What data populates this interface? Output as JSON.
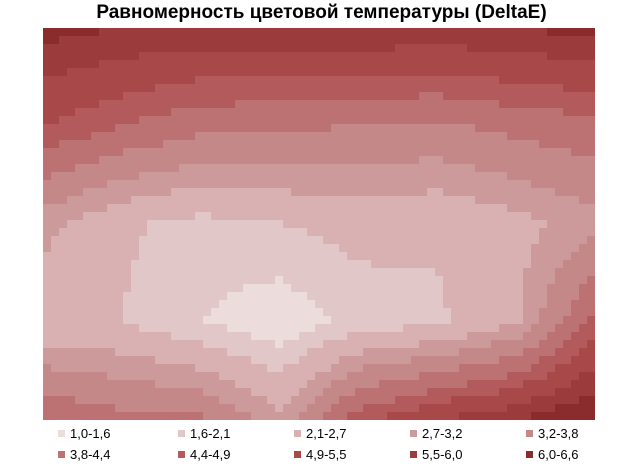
{
  "chart_data": {
    "type": "contour",
    "title": "Равномерность цветовой температуры (DeltaE)",
    "xlabel": "",
    "ylabel": "",
    "grid": false,
    "legend_position": "bottom",
    "bands": [
      {
        "label": "1,0-1,6",
        "color": "#ecdcdc"
      },
      {
        "label": "1,6-2,1",
        "color": "#e2c7c8"
      },
      {
        "label": "2,1-2,7",
        "color": "#d9b1b2"
      },
      {
        "label": "2,7-3,2",
        "color": "#cd9a9b"
      },
      {
        "label": "3,2-3,8",
        "color": "#c58889"
      },
      {
        "label": "3,8-4,4",
        "color": "#bc7172"
      },
      {
        "label": "4,4-4,9",
        "color": "#b35b5c"
      },
      {
        "label": "4,9-5,5",
        "color": "#a94849"
      },
      {
        "label": "5,5-6,0",
        "color": "#9c3b3c"
      },
      {
        "label": "6,0-6,6",
        "color": "#8a2c2d"
      }
    ],
    "grid_values": [
      [
        6.2,
        6.0,
        5.9,
        6.0,
        6.0,
        5.9,
        6.0,
        6.2
      ],
      [
        4.9,
        4.4,
        4.0,
        3.9,
        3.8,
        3.7,
        4.0,
        4.2
      ],
      [
        2.9,
        2.2,
        1.9,
        2.1,
        2.3,
        2.2,
        2.5,
        3.0
      ],
      [
        2.2,
        2.1,
        1.6,
        1.2,
        1.8,
        2.0,
        2.6,
        4.6
      ],
      [
        4.4,
        4.0,
        3.9,
        2.9,
        4.7,
        5.5,
        6.0,
        6.6
      ]
    ]
  }
}
